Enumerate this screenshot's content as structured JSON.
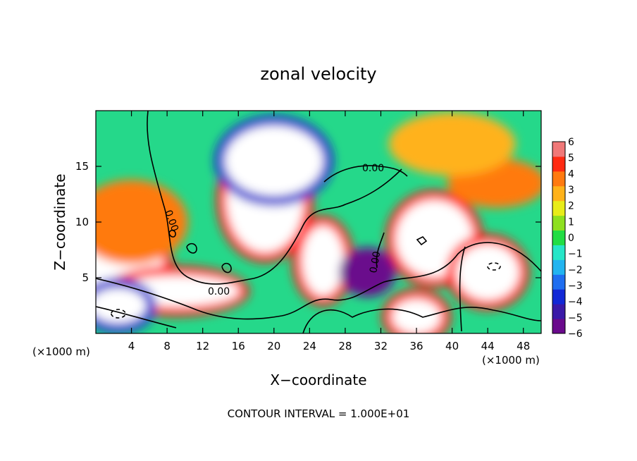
{
  "chart_data": {
    "type": "heatmap",
    "title": "zonal velocity",
    "xlabel": "X−coordinate",
    "ylabel": "Z−coordinate",
    "x_unit_left": "(×1000 m)",
    "x_unit_right": "(×1000 m)",
    "xlim": [
      0,
      50
    ],
    "ylim": [
      0,
      20
    ],
    "x_ticks": [
      4,
      8,
      12,
      16,
      20,
      24,
      28,
      32,
      36,
      40,
      44,
      48
    ],
    "y_ticks": [
      5,
      10,
      15
    ],
    "colorbar": {
      "min": -6,
      "max": 6,
      "ticks": [
        6,
        5,
        4,
        3,
        2,
        1,
        0,
        -1,
        -2,
        -3,
        -4,
        -5,
        -6
      ],
      "tick_labels": [
        "6",
        "5",
        "4",
        "3",
        "2",
        "1",
        "0",
        "−1",
        "−2",
        "−3",
        "−4",
        "−5",
        "−6"
      ],
      "colors": [
        "#6a0a8c",
        "#3a1aa8",
        "#1228d6",
        "#1f6ef0",
        "#22b4f0",
        "#27e6c8",
        "#22dd44",
        "#8ee020",
        "#e8ec1a",
        "#ffb21a",
        "#ff7a10",
        "#ff2a12",
        "#f07878"
      ]
    },
    "features": [
      {
        "x": 2,
        "z": 6.5,
        "value": 8
      },
      {
        "x": 9,
        "z": 3.8,
        "value": 8
      },
      {
        "x": 19,
        "z": 12,
        "value": 8
      },
      {
        "x": 25.5,
        "z": 6.5,
        "value": 8
      },
      {
        "x": 38,
        "z": 8.5,
        "value": 8
      },
      {
        "x": 44,
        "z": 5.5,
        "value": 8
      },
      {
        "x": 36,
        "z": 1.5,
        "value": 8
      },
      {
        "x": 2.5,
        "z": 2.5,
        "value": -8
      },
      {
        "x": 20,
        "z": 15.5,
        "value": -7
      },
      {
        "x": 30.5,
        "z": 5.5,
        "value": -6
      },
      {
        "x": 45,
        "z": 13.5,
        "value": 4
      },
      {
        "x": 4,
        "z": 10,
        "value": 3.5
      },
      {
        "x": 40,
        "z": 17,
        "value": 3
      }
    ],
    "contour_labels": [
      "0.00",
      "0.00",
      "0.00",
      "0.00"
    ],
    "footnote": "CONTOUR INTERVAL = 1.000E+01"
  }
}
